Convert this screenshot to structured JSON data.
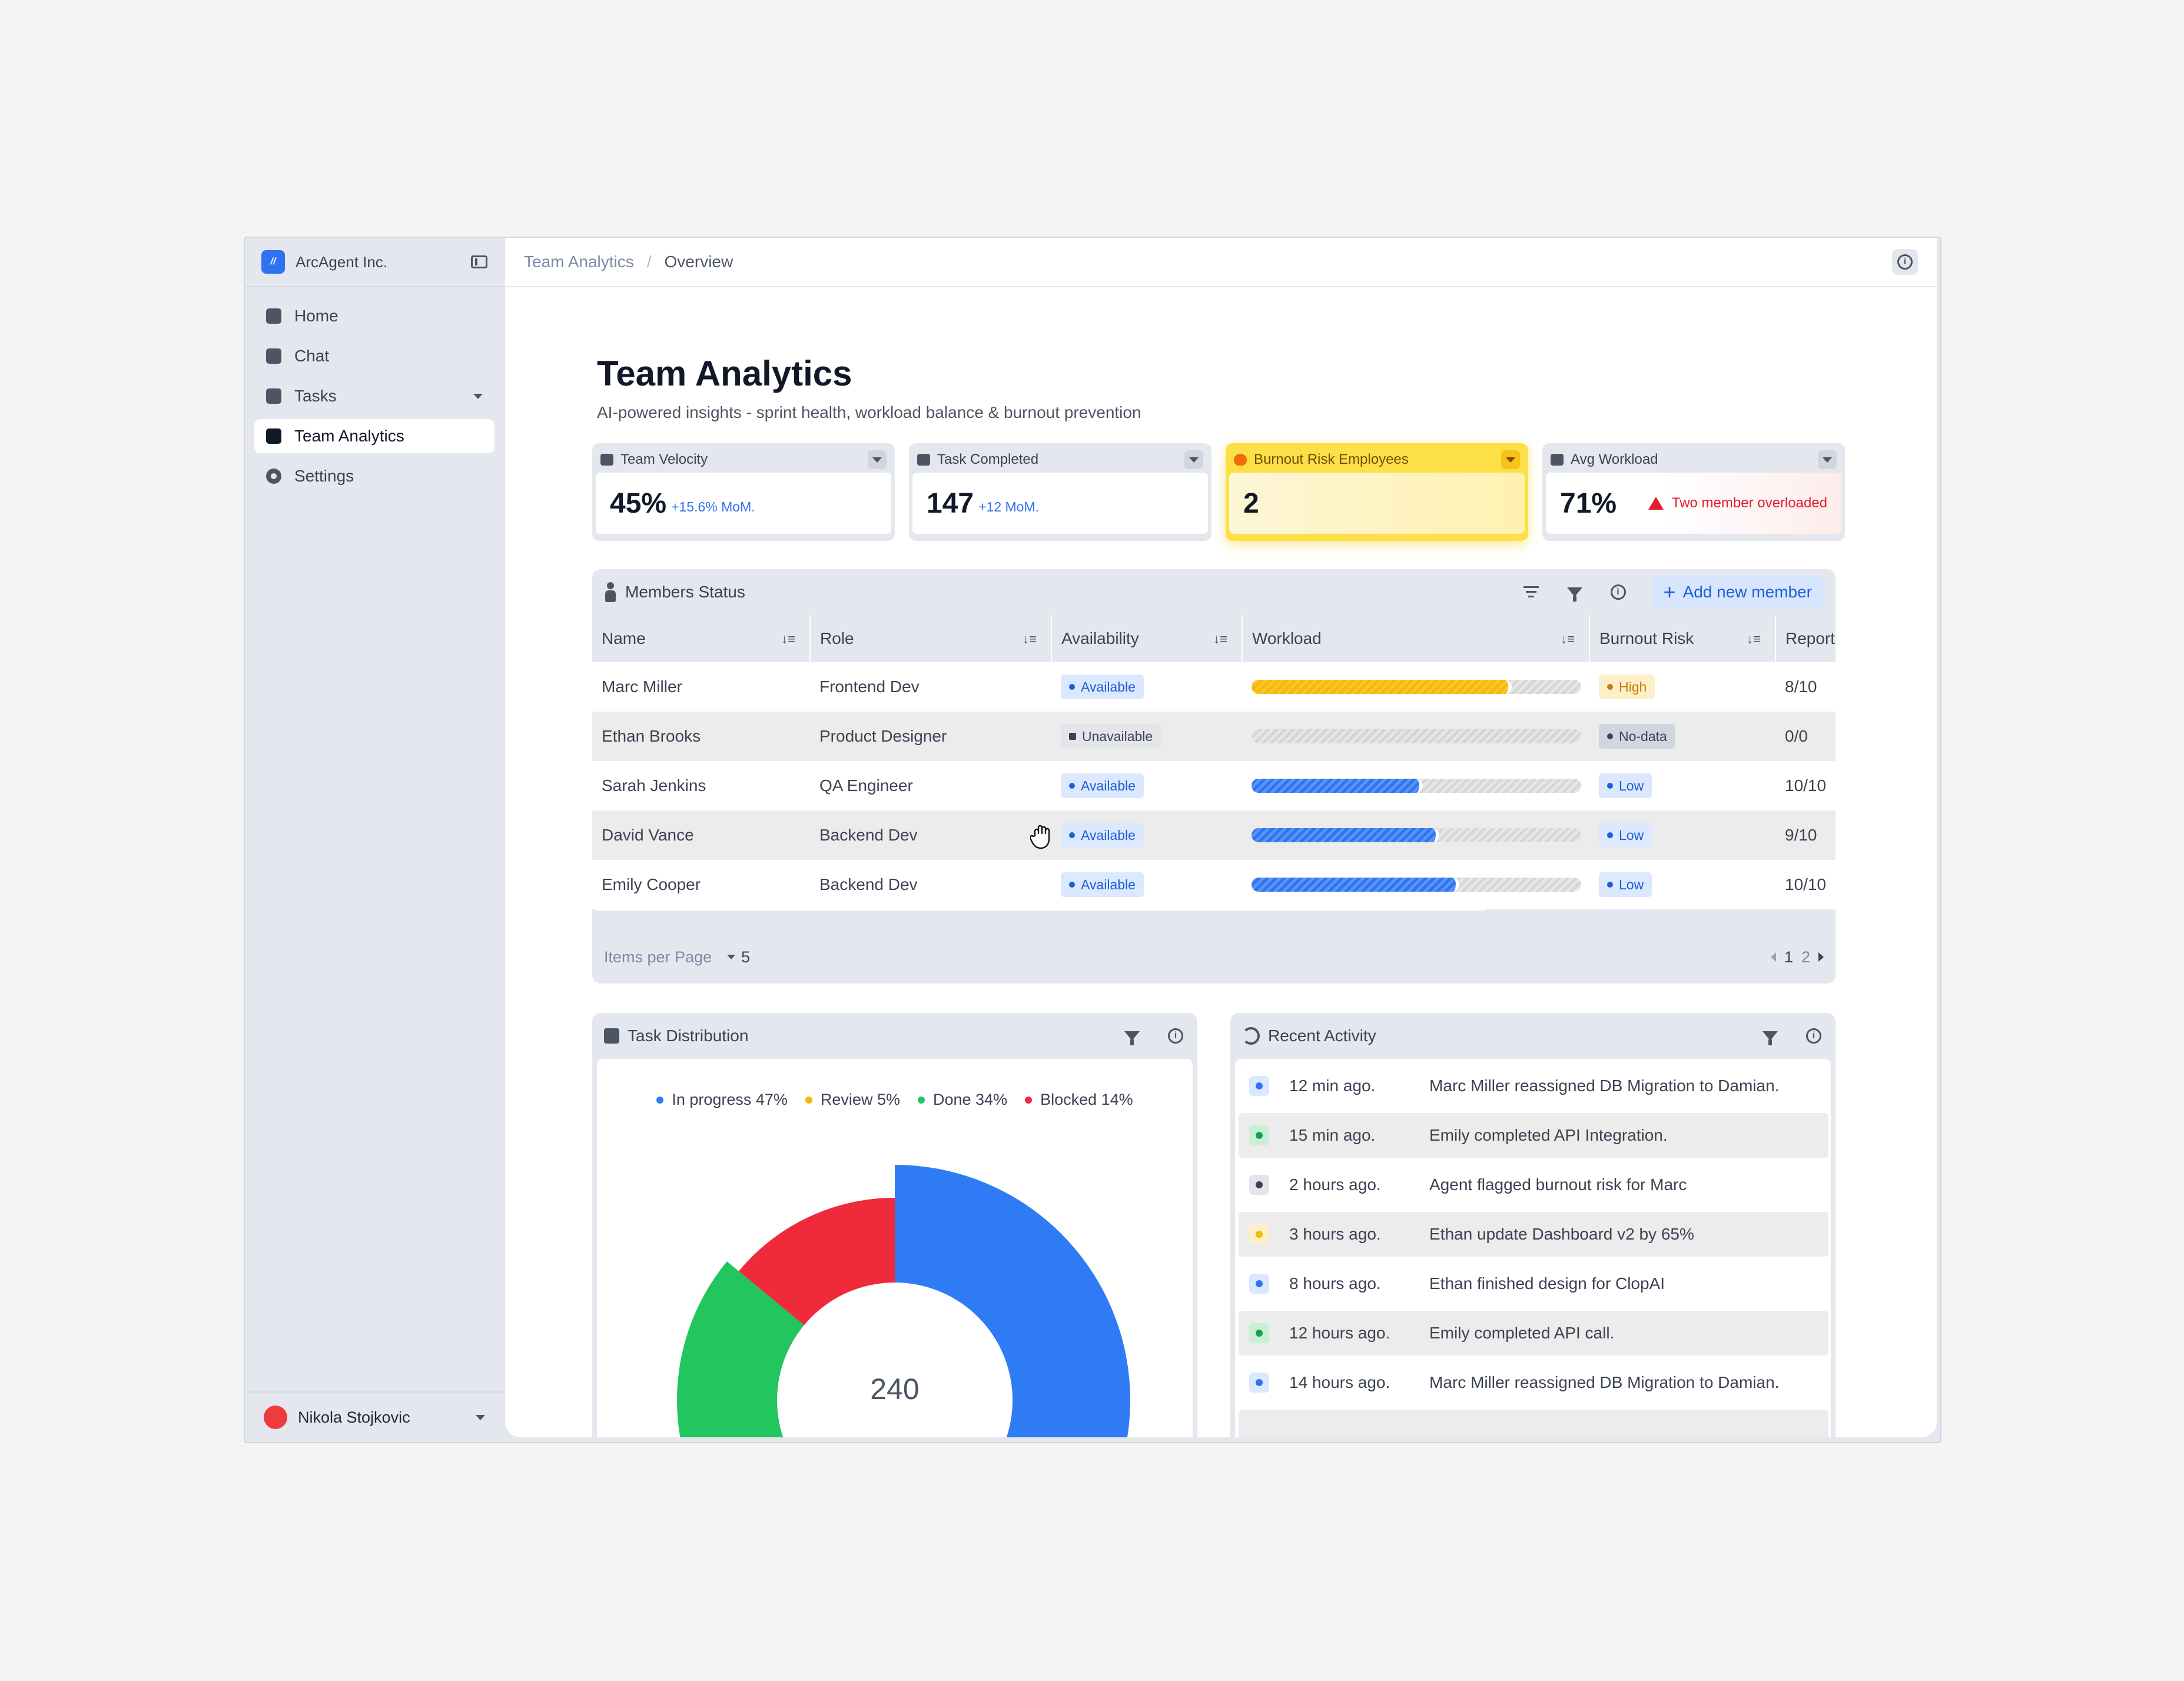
{
  "sidebar": {
    "org": "ArcAgent Inc.",
    "logo_letter": "//",
    "items": [
      {
        "label": "Home",
        "icon": "bank-icon"
      },
      {
        "label": "Chat",
        "icon": "chat-icon"
      },
      {
        "label": "Tasks",
        "icon": "checkbox-icon"
      },
      {
        "label": "Team Analytics",
        "icon": "analytics-icon"
      },
      {
        "label": "Settings",
        "icon": "gear-icon"
      }
    ],
    "active": "Team Analytics",
    "user": "Nikola Stojkovic"
  },
  "breadcrumb": {
    "parent": "Team Analytics",
    "separator": "/",
    "current": "Overview"
  },
  "page": {
    "title": "Team Analytics",
    "subtitle": "AI-powered insights - sprint health, workload balance & burnout prevention"
  },
  "kpis": [
    {
      "label": "Team Velocity",
      "value": "45%",
      "delta": "+15.6% MoM."
    },
    {
      "label": "Task Completed",
      "value": "147",
      "delta": "+12 MoM."
    },
    {
      "label": "Burnout Risk Employees",
      "value": "2"
    },
    {
      "label": "Avg Workload",
      "value": "71%",
      "alert": "Two member overloaded"
    }
  ],
  "members": {
    "title": "Members Status",
    "add_label": "Add new member",
    "columns": [
      "Name",
      "Role",
      "Availability",
      "Workload",
      "Burnout Risk",
      "Report"
    ],
    "rows": [
      {
        "name": "Marc Miller",
        "role": "Frontend Dev",
        "availability": "Available",
        "workload": 0.79,
        "risk": "High",
        "report": "8/10"
      },
      {
        "name": "Ethan Brooks",
        "role": "Product Designer",
        "availability": "Unavailable",
        "workload": 0,
        "risk": "No-data",
        "report": "0/0"
      },
      {
        "name": "Sarah Jenkins",
        "role": "QA Engineer",
        "availability": "Available",
        "workload": 0.52,
        "risk": "Low",
        "report": "10/10"
      },
      {
        "name": "David Vance",
        "role": "Backend Dev",
        "availability": "Available",
        "workload": 0.57,
        "risk": "Low",
        "report": "9/10"
      },
      {
        "name": "Emily Cooper",
        "role": "Backend Dev",
        "availability": "Available",
        "workload": 0.63,
        "risk": "Low",
        "report": "10/10"
      }
    ],
    "items_per_page_label": "Items per Page",
    "items_per_page": "5",
    "pages": [
      "1",
      "2"
    ]
  },
  "task_distribution": {
    "title": "Task Distribution",
    "total": "240"
  },
  "chart_data": {
    "type": "pie",
    "title": "Task Distribution",
    "categories": [
      "In progress",
      "Review",
      "Done",
      "Blocked"
    ],
    "values": [
      47,
      5,
      34,
      14
    ],
    "legend_labels": [
      "In progress 47%",
      "Review 5%",
      "Done 34%",
      "Blocked 14%"
    ],
    "colors": [
      "#2f7bf6",
      "#f5b80d",
      "#22c55e",
      "#ef2b3b"
    ],
    "center_label": "240",
    "legend_position": "top"
  },
  "recent_activity": {
    "title": "Recent Activity",
    "items": [
      {
        "time": "12 min ago.",
        "text": "Marc Miller reassigned DB Migration to Damian.",
        "color": "#2f73f2",
        "bg": "#dbe8fd"
      },
      {
        "time": "15 min ago.",
        "text": "Emily completed API Integration.",
        "color": "#16a34a",
        "bg": "#c9f0d6"
      },
      {
        "time": "2 hours ago.",
        "text": "Agent flagged burnout risk for Marc",
        "color": "#374151",
        "bg": "#e3e5ea"
      },
      {
        "time": "3 hours ago.",
        "text": "Ethan update Dashboard v2 by 65%",
        "color": "#f5b80d",
        "bg": "#fdf0c8"
      },
      {
        "time": "8 hours ago.",
        "text": "Ethan finished design for ClopAI",
        "color": "#2f73f2",
        "bg": "#dbe8fd"
      },
      {
        "time": "12  hours ago.",
        "text": "Emily completed API call.",
        "color": "#16a34a",
        "bg": "#c9f0d6"
      },
      {
        "time": "14 hours ago.",
        "text": "Marc Miller reassigned DB Migration to Damian.",
        "color": "#2f73f2",
        "bg": "#dbe8fd"
      }
    ]
  }
}
